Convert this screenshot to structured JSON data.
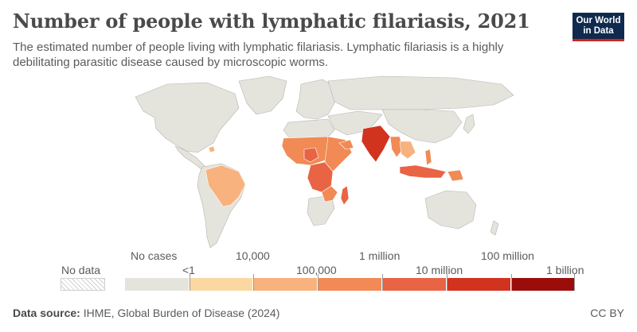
{
  "header": {
    "title": "Number of people with lymphatic filariasis, 2021",
    "subtitle": "The estimated number of people living with lymphatic filariasis. Lymphatic filariasis is a highly debilitating parasitic disease caused by microscopic worms."
  },
  "logo": {
    "line1": "Our World",
    "line2": "in Data",
    "bg_color": "#0f2a4e",
    "accent_color": "#ce261e"
  },
  "legend": {
    "no_data_label": "No data",
    "no_cases_label": "No cases",
    "bin_labels": {
      "lt1": "<1",
      "b10000": "10,000",
      "b100000": "100,000",
      "b1m": "1 million",
      "b10m": "10 million",
      "b100m": "100 million",
      "b1b": "1 billion"
    },
    "colors": {
      "no_cases": "#e4e4dc",
      "bin1": "#fbd8a2",
      "bin2": "#f7b27e",
      "bin3": "#f18a55",
      "bin4": "#e86444",
      "bin5": "#d2331f",
      "bin6": "#9b0d0b"
    }
  },
  "map": {
    "land_no_cases": "#e4e4dc",
    "border_color": "#b5b5b0",
    "regions": [
      {
        "name": "India",
        "level": "bin5"
      },
      {
        "name": "Indonesia",
        "level": "bin4"
      },
      {
        "name": "Nigeria",
        "level": "bin3"
      },
      {
        "name": "Democratic Republic of Congo",
        "level": "bin4"
      },
      {
        "name": "Brazil",
        "level": "bin2"
      },
      {
        "name": "Ethiopia",
        "level": "bin3"
      },
      {
        "name": "Madagascar",
        "level": "bin4"
      },
      {
        "name": "Myanmar",
        "level": "bin3"
      },
      {
        "name": "Papua New Guinea",
        "level": "bin3"
      }
    ]
  },
  "footer": {
    "source_label": "Data source:",
    "source_text": "IHME, Global Burden of Disease (2024)",
    "license": "CC BY"
  }
}
